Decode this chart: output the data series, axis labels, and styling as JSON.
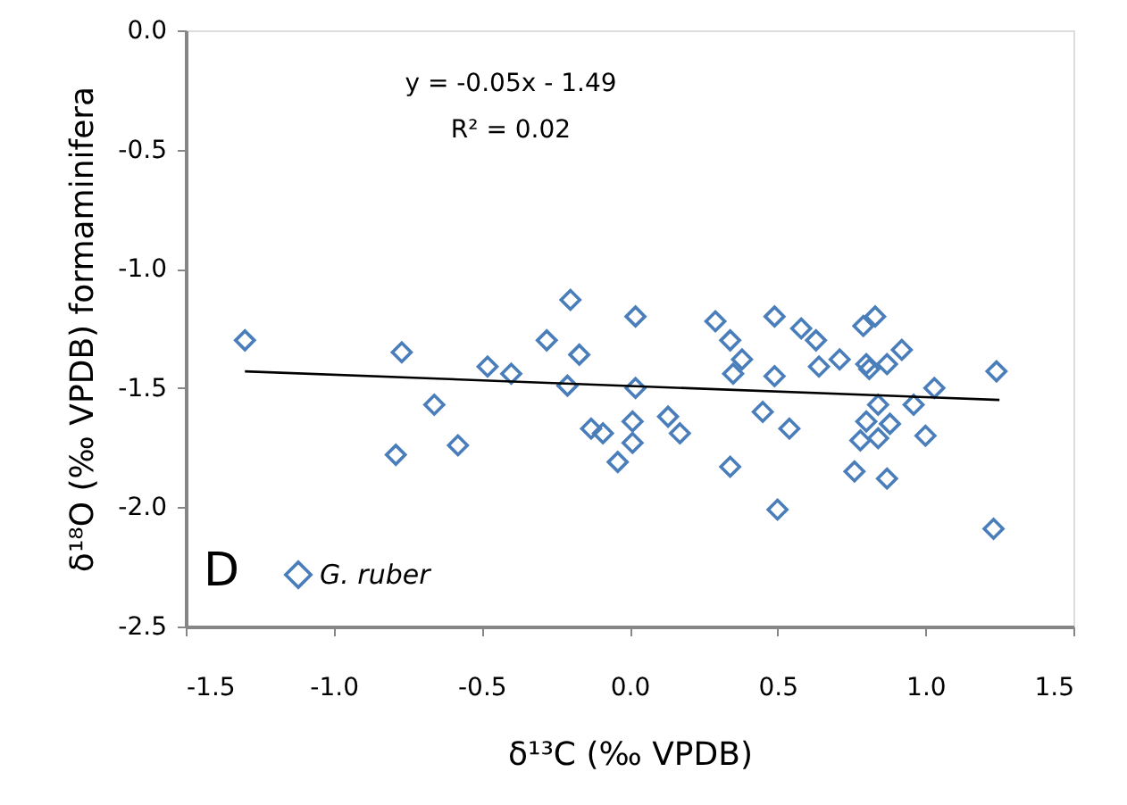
{
  "chart_data": {
    "type": "scatter",
    "xlabel": "δ¹³C (‰ VPDB)",
    "ylabel": "δ¹⁸O (‰ VPDB) formaminifera",
    "annotations": [
      "y = -0.05x - 1.49",
      "R² = 0.02",
      "D"
    ],
    "xlim": [
      -1.5,
      1.5
    ],
    "xticks": [
      {
        "value": -1.5,
        "label": "-1.5"
      },
      {
        "value": -1.0,
        "label": "-1.0"
      },
      {
        "value": -0.5,
        "label": "-0.5"
      },
      {
        "value": 0,
        "label": "0.0"
      },
      {
        "value": 0.5,
        "label": "0.5"
      },
      {
        "value": 1.0,
        "label": "1.0"
      },
      {
        "value": 1.5,
        "label": "1.5"
      }
    ],
    "ylim": [
      -2.5,
      0
    ],
    "yticks": [
      {
        "value": -2.5,
        "label": "-2.5"
      },
      {
        "value": -2.0,
        "label": "-2.0"
      },
      {
        "value": -1.5,
        "label": "-1.5"
      },
      {
        "value": -1.0,
        "label": "-1.0"
      },
      {
        "value": -0.5,
        "label": "-0.5"
      },
      {
        "value": 0,
        "label": "0.0"
      }
    ],
    "grid": false,
    "legend": "bottom left",
    "series": [
      {
        "name": "G. ruber",
        "marker": "diamond",
        "color": "#4a7ebb",
        "x": [
          -1.3,
          -0.77,
          -0.66,
          -0.79,
          -0.58,
          -0.48,
          -0.4,
          -0.28,
          -0.2,
          -0.17,
          -0.21,
          -0.13,
          -0.09,
          -0.04,
          0.01,
          0.01,
          0.02,
          0.02,
          0.13,
          0.17,
          0.29,
          0.34,
          0.38,
          0.35,
          0.49,
          0.49,
          0.34,
          0.45,
          0.54,
          0.5,
          0.58,
          0.63,
          0.64,
          0.71,
          0.79,
          0.83,
          0.8,
          0.81,
          0.87,
          0.92,
          0.84,
          0.8,
          0.88,
          0.84,
          0.78,
          0.96,
          1.0,
          1.03,
          0.76,
          0.87,
          1.24,
          1.23
        ],
        "values": [
          -1.3,
          -1.35,
          -1.57,
          -1.78,
          -1.74,
          -1.41,
          -1.44,
          -1.3,
          -1.13,
          -1.36,
          -1.49,
          -1.67,
          -1.69,
          -1.81,
          -1.64,
          -1.73,
          -1.2,
          -1.5,
          -1.62,
          -1.69,
          -1.22,
          -1.3,
          -1.38,
          -1.44,
          -1.2,
          -1.45,
          -1.83,
          -1.6,
          -1.67,
          -2.01,
          -1.25,
          -1.3,
          -1.41,
          -1.38,
          -1.24,
          -1.2,
          -1.4,
          -1.42,
          -1.4,
          -1.34,
          -1.57,
          -1.64,
          -1.65,
          -1.71,
          -1.72,
          -1.57,
          -1.7,
          -1.5,
          -1.85,
          -1.88,
          -1.43,
          -2.09
        ]
      },
      {
        "type": "line",
        "color": "#000000",
        "line_style": "solid",
        "marker": "none",
        "x": [
          -1.3,
          1.25
        ],
        "values": [
          -1.43,
          -1.55
        ]
      }
    ]
  }
}
